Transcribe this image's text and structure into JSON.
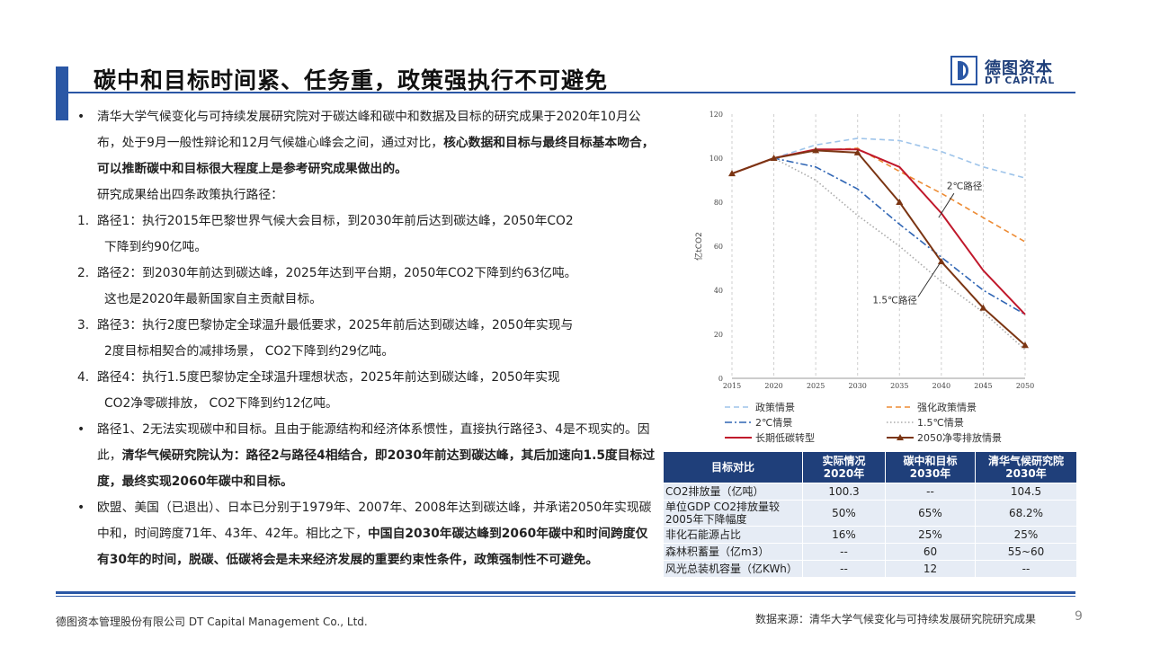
{
  "header": {
    "title": "碳中和目标时间紧、任务重，政策强执行不可避免",
    "logo_cn": "德图资本",
    "logo_en": "DT CAPITAL"
  },
  "body": {
    "p1a": "清华大学气候变化与可持续发展研究院对于碳达峰和碳中和数据及目标的研究成果于2020年10月公布，处于9月一般性辩论和12月气候雄心峰会之间，通过对比，",
    "p1b": "核心数据和目标与最终目标基本吻合，可以推断碳中和目标很大程度上是参考研究成果做出的。",
    "p1c": "研究成果给出四条政策执行路径：",
    "r1n": "1.",
    "r1a": "路径1：执行2015年巴黎世界气候大会目标，到2030年前后达到碳达峰，2050年CO2",
    "r1b": "下降到约90亿吨。",
    "r2n": "2.",
    "r2a": "路径2：到2030年前达到碳达峰，2025年达到平台期，2050年CO2下降到约63亿吨。",
    "r2b": "这也是2020年最新国家自主贡献目标。",
    "r3n": "3.",
    "r3a": "路径3：执行2度巴黎协定全球温升最低要求，2025年前后达到碳达峰，2050年实现与",
    "r3b": "2度目标相契合的减排场景， CO2下降到约29亿吨。",
    "r4n": "4.",
    "r4a": "路径4：执行1.5度巴黎协定全球温升理想状态，2025年前达到碳达峰，2050年实现",
    "r4b": "CO2净零碳排放， CO2下降到约12亿吨。",
    "p2a": "路径1、2无法实现碳中和目标。且由于能源结构和经济体系惯性，直接执行路径3、4是不现实的。因此，",
    "p2b": "清华气候研究院认为：路径2与路径4相结合，即2030年前达到碳达峰，其后加速向1.5度目标过度，最终实现2060年碳中和目标。",
    "p3a": "欧盟、美国（已退出）、日本已分别于1979年、2007年、2008年达到碳达峰，并承诺2050年实现碳中和，时间跨度71年、43年、42年。相比之下，",
    "p3b": "中国自2030年碳达峰到2060年碳中和时间跨度仅有30年的时间，脱碳、低碳将会是未来经济发展的重要约束性条件，政策强制性不可避免。"
  },
  "chart_data": {
    "type": "line",
    "x": [
      2015,
      2020,
      2025,
      2030,
      2035,
      2040,
      2045,
      2050
    ],
    "ylabel": "亿tCO2",
    "ylim": [
      0,
      120
    ],
    "yticks": [
      0,
      20,
      40,
      60,
      80,
      100,
      120
    ],
    "grid": "vertical-dashed",
    "annotations": [
      "2℃路径",
      "1.5℃路径"
    ],
    "series": [
      {
        "name": "政策情景",
        "color": "#9ec4ea",
        "dash": "dashed",
        "values": [
          93,
          100,
          106,
          109,
          108,
          103,
          96,
          91
        ]
      },
      {
        "name": "强化政策情景",
        "color": "#ed8b34",
        "dash": "dashed",
        "values": [
          93,
          100,
          103.5,
          104.5,
          94,
          84,
          73,
          62
        ]
      },
      {
        "name": "2℃情景",
        "color": "#2f65b4",
        "dash": "dashdot",
        "values": [
          93,
          100,
          96,
          86,
          70,
          55,
          40,
          29
        ]
      },
      {
        "name": "1.5℃情景",
        "color": "#aaaaaa",
        "dash": "dotted",
        "values": [
          93,
          100,
          90,
          74,
          60,
          44,
          30,
          13
        ]
      },
      {
        "name": "长期低碳转型",
        "color": "#c0182b",
        "dash": "solid",
        "values": [
          93,
          100,
          104,
          104,
          96,
          75,
          49,
          29
        ]
      },
      {
        "name": "2050净零排放情景",
        "color": "#7b3513",
        "dash": "solid",
        "marker": "triangle",
        "values": [
          93,
          100,
          103.5,
          102.5,
          80,
          53,
          32,
          15
        ]
      }
    ]
  },
  "table": {
    "headers": [
      "目标对比",
      "实际情况\n2020年",
      "碳中和目标\n2030年",
      "清华气候研究院\n2030年"
    ],
    "rows": [
      [
        "CO2排放量（亿吨）",
        "100.3",
        "--",
        "104.5"
      ],
      [
        "单位GDP CO2排放量较2005年下降幅度",
        "50%",
        "65%",
        "68.2%"
      ],
      [
        "非化石能源占比",
        "16%",
        "25%",
        "25%"
      ],
      [
        "森林积蓄量（亿m3）",
        "--",
        "60",
        "55~60"
      ],
      [
        "风光总装机容量（亿KWh）",
        "--",
        "12",
        "--"
      ]
    ]
  },
  "footer": {
    "company": "德图资本管理股份有限公司 DT Capital Management Co., Ltd.",
    "source": "数据来源：清华大学气候变化与可持续发展研究院研究成果",
    "page": "9"
  }
}
